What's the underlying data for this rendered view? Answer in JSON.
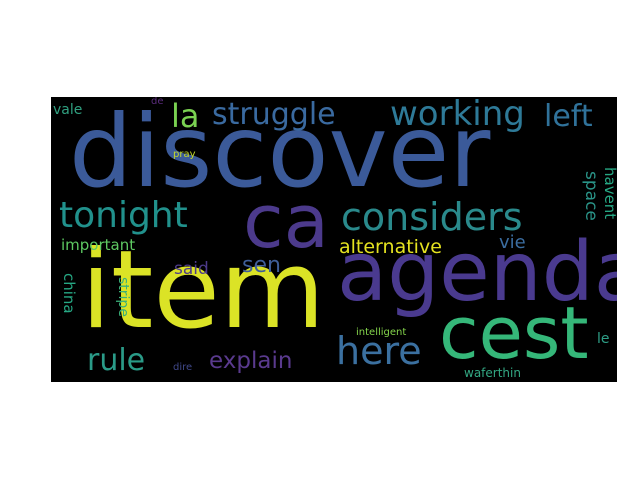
{
  "words": [
    {
      "text": "discover",
      "color": "#3b5a99"
    },
    {
      "text": "item",
      "color": "#dbe326"
    },
    {
      "text": "agenda",
      "color": "#4a3a8f"
    },
    {
      "text": "ca",
      "color": "#4c3a8c"
    },
    {
      "text": "cest",
      "color": "#35b779"
    },
    {
      "text": "considers",
      "color": "#2a8a8c"
    },
    {
      "text": "tonight",
      "color": "#21918c"
    },
    {
      "text": "here",
      "color": "#3b70a0"
    },
    {
      "text": "struggle",
      "color": "#3a6aa0"
    },
    {
      "text": "working",
      "color": "#2e7a98"
    },
    {
      "text": "left",
      "color": "#30729a"
    },
    {
      "text": "la",
      "color": "#7ad151"
    },
    {
      "text": "rule",
      "color": "#2a9b88"
    },
    {
      "text": "explain",
      "color": "#5a3a8e"
    },
    {
      "text": "alternative",
      "color": "#e5e320"
    },
    {
      "text": "sen",
      "color": "#3f5e98"
    },
    {
      "text": "said",
      "color": "#4d3b8a"
    },
    {
      "text": "important",
      "color": "#5ec962"
    },
    {
      "text": "vie",
      "color": "#3b6da0"
    },
    {
      "text": "space",
      "color": "#2a9488"
    },
    {
      "text": "havent",
      "color": "#26a884"
    },
    {
      "text": "china",
      "color": "#26a884"
    },
    {
      "text": "stripe",
      "color": "#3ab07a"
    },
    {
      "text": "vale",
      "color": "#30a080"
    },
    {
      "text": "waferthin",
      "color": "#33a883"
    },
    {
      "text": "le",
      "color": "#2e9f87"
    },
    {
      "text": "intelligent",
      "color": "#84d44b"
    },
    {
      "text": "dire",
      "color": "#40488a"
    },
    {
      "text": "pray",
      "color": "#c4d92a"
    },
    {
      "text": "de",
      "color": "#5a2c7c"
    }
  ]
}
